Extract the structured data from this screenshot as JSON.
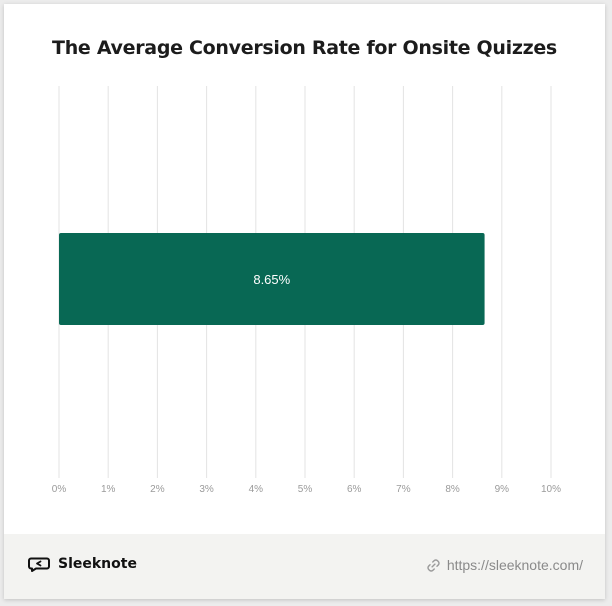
{
  "chart_data": {
    "type": "bar",
    "orientation": "horizontal",
    "title": "The Average Conversion Rate for Onsite Quizzes",
    "categories": [
      ""
    ],
    "values": [
      8.65
    ],
    "data_labels": [
      "8.65%"
    ],
    "xlim": [
      0,
      10
    ],
    "x_ticks": [
      "0%",
      "1%",
      "2%",
      "3%",
      "4%",
      "5%",
      "6%",
      "7%",
      "8%",
      "9%",
      "10%"
    ],
    "grid": true,
    "bar_color": "#086854",
    "grid_color": "#e3e3e3",
    "tick_color": "#9a9a9a",
    "label_color": "#ffffff"
  },
  "footer": {
    "brand": "Sleeknote",
    "url": "https://sleeknote.com/",
    "brand_icon": "sleeknote-logo-icon",
    "url_icon": "link-icon"
  }
}
